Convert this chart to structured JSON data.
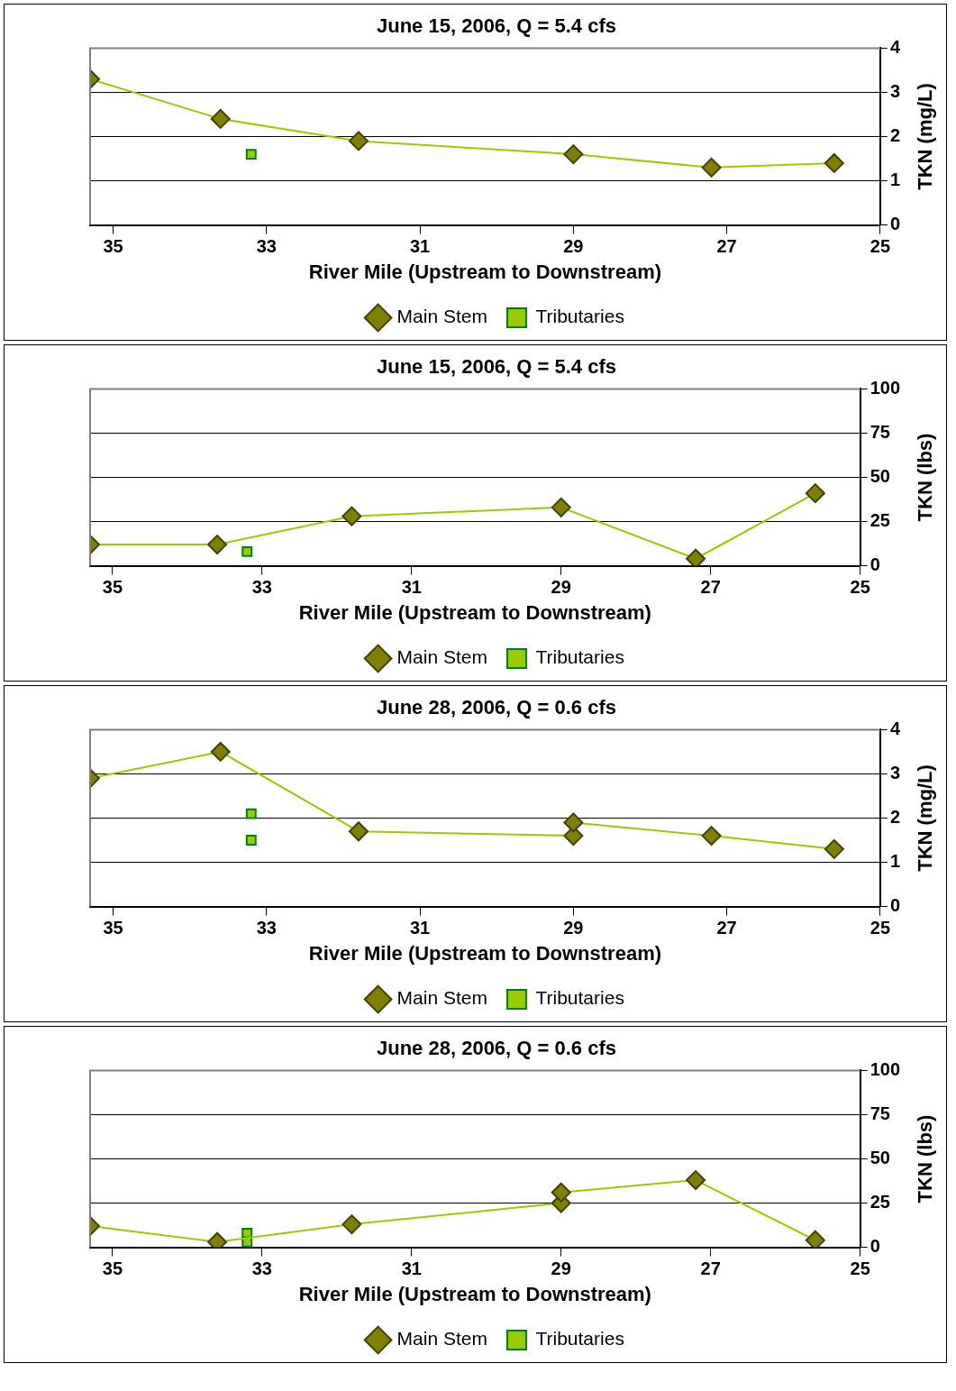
{
  "chart_data": [
    {
      "type": "line",
      "title": "June 15, 2006, Q = 5.4 cfs",
      "xlabel": "River Mile (Upstream to Downstream)",
      "ylabel": "TKN (mg/L)",
      "xlim": [
        35.3,
        25
      ],
      "xticks": [
        35,
        33,
        31,
        29,
        27,
        25
      ],
      "ylim": [
        0,
        4
      ],
      "yticks": [
        0,
        1,
        2,
        3,
        4
      ],
      "grid": "y",
      "legend": "bottom",
      "series": [
        {
          "name": "Main Stem",
          "type": "line",
          "marker": "diamond",
          "color": "#99cc00",
          "x": [
            35.3,
            33.6,
            31.8,
            29.0,
            27.2,
            25.6
          ],
          "values": [
            3.3,
            2.4,
            1.9,
            1.6,
            1.3,
            1.4
          ]
        },
        {
          "name": "Tributaries",
          "type": "scatter",
          "marker": "square",
          "color": "#99cc00",
          "x": [
            33.2
          ],
          "values": [
            1.6
          ]
        }
      ]
    },
    {
      "type": "line",
      "title": "June 15, 2006, Q = 5.4 cfs",
      "xlabel": "River Mile (Upstream to Downstream)",
      "ylabel": "TKN (lbs)",
      "xlim": [
        35.3,
        25
      ],
      "xticks": [
        35,
        33,
        31,
        29,
        27,
        25
      ],
      "ylim": [
        0,
        100
      ],
      "yticks": [
        0,
        25,
        50,
        75,
        100
      ],
      "grid": "y",
      "legend": "bottom",
      "series": [
        {
          "name": "Main Stem",
          "type": "line",
          "marker": "diamond",
          "color": "#99cc00",
          "x": [
            35.3,
            33.6,
            31.8,
            29.0,
            27.2,
            25.6
          ],
          "values": [
            12,
            12,
            28,
            33,
            4,
            41
          ]
        },
        {
          "name": "Tributaries",
          "type": "scatter",
          "marker": "square",
          "color": "#99cc00",
          "x": [
            33.2
          ],
          "values": [
            8
          ]
        }
      ]
    },
    {
      "type": "line",
      "title": "June 28, 2006, Q = 0.6 cfs",
      "xlabel": "River Mile (Upstream to Downstream)",
      "ylabel": "TKN (mg/L)",
      "xlim": [
        35.3,
        25
      ],
      "xticks": [
        35,
        33,
        31,
        29,
        27,
        25
      ],
      "ylim": [
        0,
        4
      ],
      "yticks": [
        0,
        1,
        2,
        3,
        4
      ],
      "grid": "y",
      "legend": "bottom",
      "series": [
        {
          "name": "Main Stem",
          "type": "line",
          "marker": "diamond",
          "color": "#99cc00",
          "x": [
            35.3,
            33.6,
            31.8,
            29.0,
            29.0,
            27.2,
            25.6
          ],
          "values": [
            2.9,
            3.5,
            1.7,
            1.6,
            1.9,
            1.6,
            1.3
          ]
        },
        {
          "name": "Tributaries",
          "type": "scatter",
          "marker": "square",
          "color": "#99cc00",
          "x": [
            33.2,
            33.2
          ],
          "values": [
            2.1,
            1.5
          ]
        }
      ]
    },
    {
      "type": "line",
      "title": "June 28, 2006, Q = 0.6 cfs",
      "xlabel": "River Mile (Upstream to Downstream)",
      "ylabel": "TKN (lbs)",
      "xlim": [
        35.3,
        25
      ],
      "xticks": [
        35,
        33,
        31,
        29,
        27,
        25
      ],
      "ylim": [
        0,
        100
      ],
      "yticks": [
        0,
        25,
        50,
        75,
        100
      ],
      "grid": "y",
      "legend": "bottom",
      "series": [
        {
          "name": "Main Stem",
          "type": "line",
          "marker": "diamond",
          "color": "#99cc00",
          "x": [
            35.3,
            33.6,
            31.8,
            29.0,
            29.0,
            27.2,
            25.6
          ],
          "values": [
            12,
            3,
            13,
            25,
            31,
            38,
            4
          ]
        },
        {
          "name": "Tributaries",
          "type": "scatter",
          "marker": "square",
          "color": "#99cc00",
          "x": [
            33.2,
            33.2
          ],
          "values": [
            8,
            3
          ]
        }
      ]
    }
  ]
}
